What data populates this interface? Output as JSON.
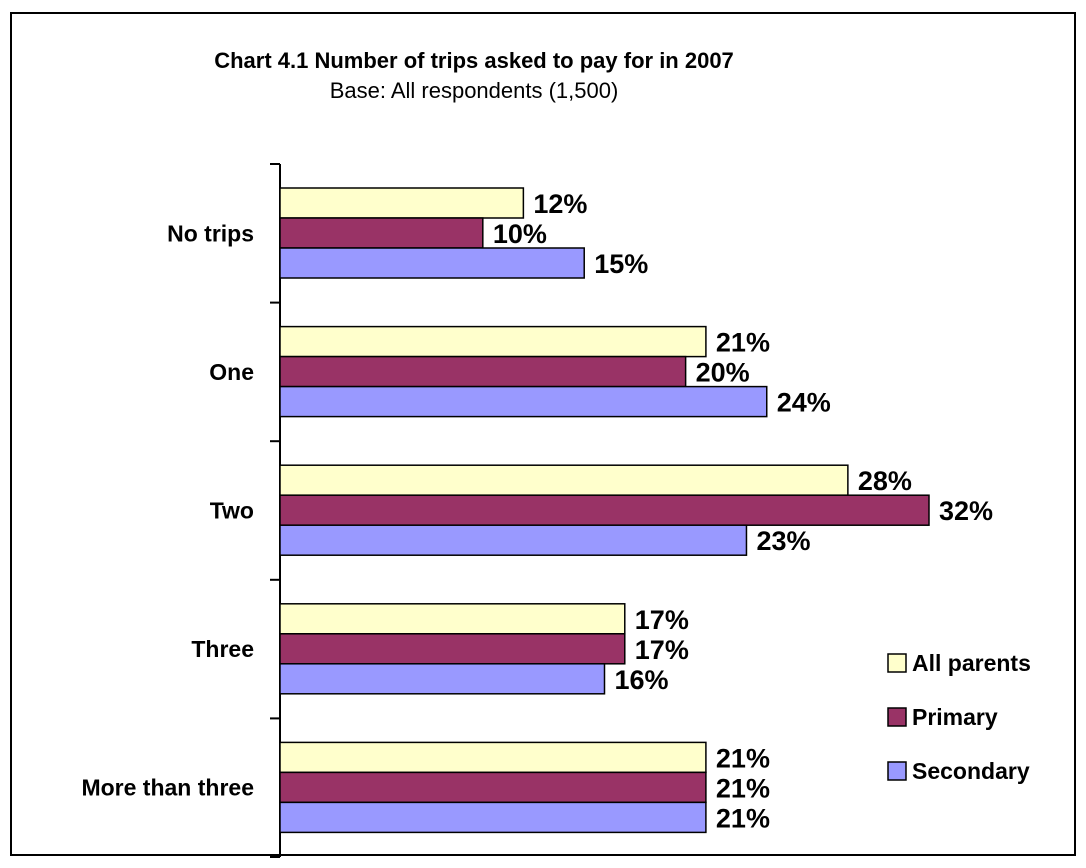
{
  "chart_data": {
    "type": "bar",
    "orientation": "horizontal",
    "title": "Chart 4.1 Number of trips asked to pay for in 2007",
    "subtitle": "Base: All respondents (1,500)",
    "categories": [
      "No trips",
      "One",
      "Two",
      "Three",
      "More than three"
    ],
    "series": [
      {
        "name": "All parents",
        "color": "#FFFFCC",
        "values": [
          12,
          21,
          28,
          17,
          21
        ],
        "labels": [
          "12%",
          "21%",
          "28%",
          "17%",
          "21%"
        ]
      },
      {
        "name": "Primary",
        "color": "#993366",
        "values": [
          10,
          20,
          32,
          17,
          21
        ],
        "labels": [
          "10%",
          "20%",
          "32%",
          "17%",
          "21%"
        ]
      },
      {
        "name": "Secondary",
        "color": "#9999FF",
        "values": [
          15,
          24,
          23,
          16,
          21
        ],
        "labels": [
          "15%",
          "24%",
          "23%",
          "16%",
          "21%"
        ]
      }
    ],
    "xlim": [
      0,
      32
    ],
    "grid": false,
    "legend": "bottom-right"
  }
}
